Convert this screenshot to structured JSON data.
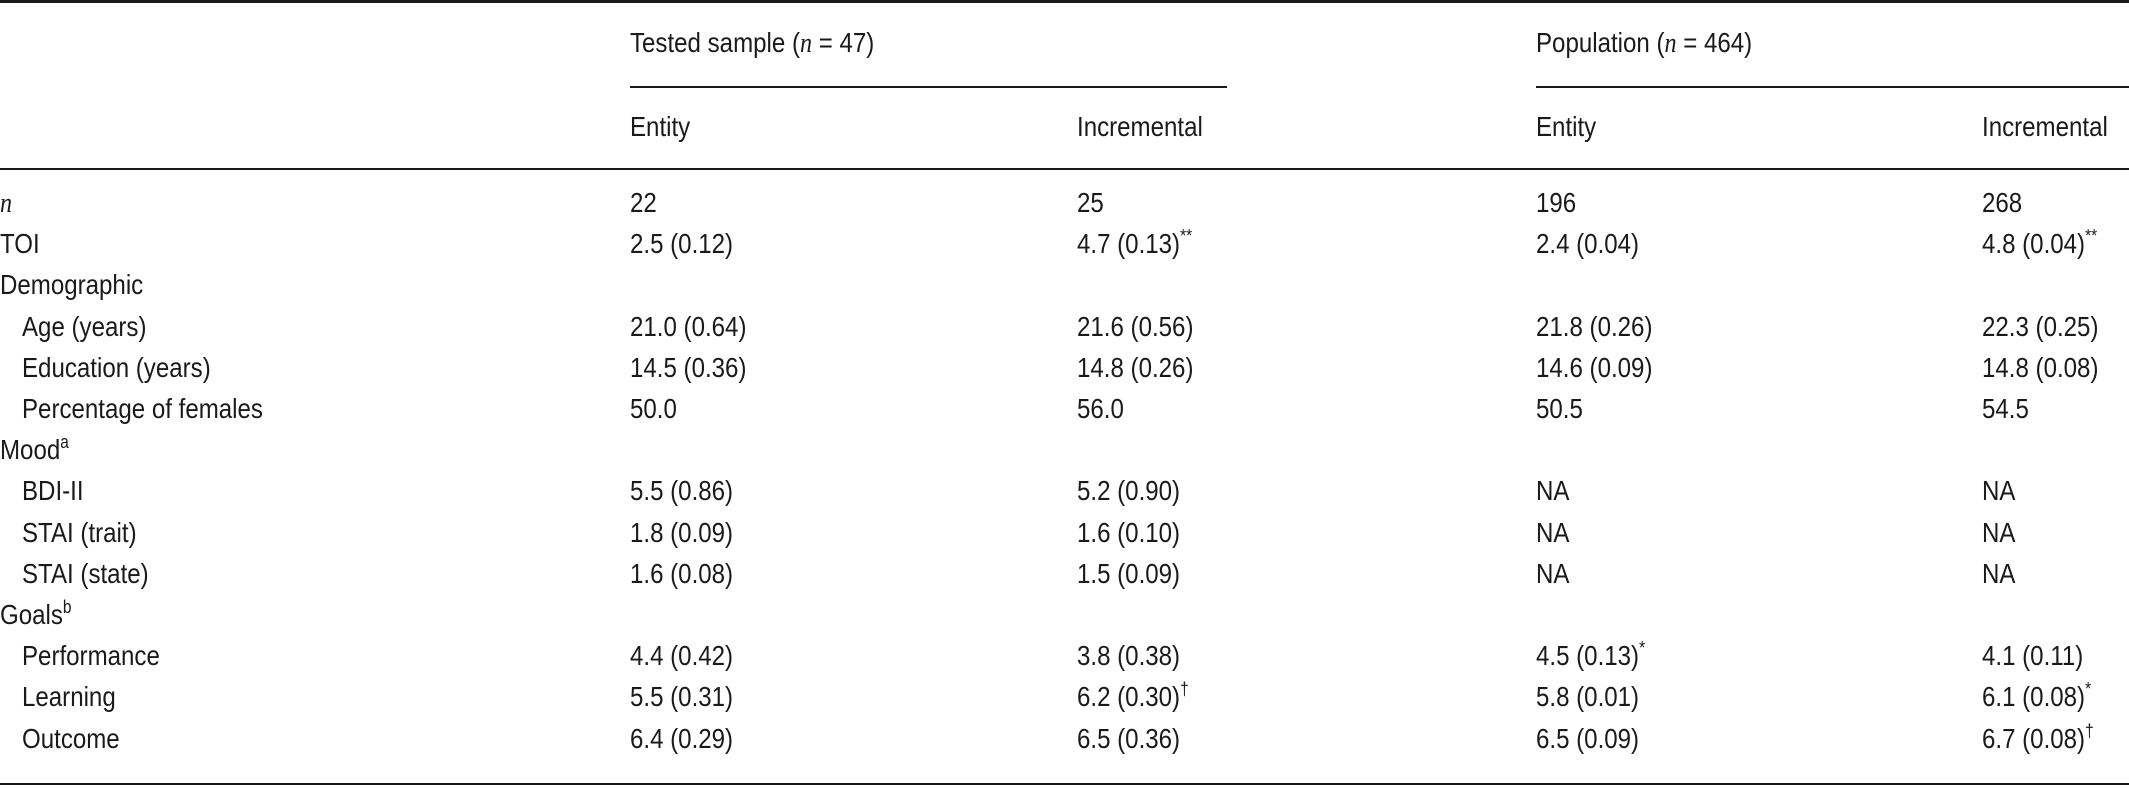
{
  "header": {
    "group_left": {
      "label": "Tested sample (",
      "n_sym": "n",
      "eq": " = 47)"
    },
    "group_right": {
      "label": "Population (",
      "n_sym": "n",
      "eq": " = 464)"
    },
    "sub": [
      "Entity",
      "Incremental",
      "Entity",
      "Incremental"
    ]
  },
  "rows": [
    {
      "label": "n",
      "italic": true,
      "v": [
        "22",
        "25",
        "196",
        "268"
      ]
    },
    {
      "label": "TOI",
      "v": [
        "2.5 (0.12)",
        "4.7 (0.13)",
        "2.4 (0.04)",
        "4.8 (0.04)"
      ],
      "sup": [
        "",
        "**",
        "",
        "**"
      ]
    },
    {
      "label": "Demographic",
      "v": [
        "",
        "",
        "",
        ""
      ]
    },
    {
      "label": "Age (years)",
      "indent": true,
      "v": [
        "21.0 (0.64)",
        "21.6 (0.56)",
        "21.8 (0.26)",
        "22.3 (0.25)"
      ]
    },
    {
      "label": "Education (years)",
      "indent": true,
      "v": [
        "14.5 (0.36)",
        "14.8 (0.26)",
        "14.6 (0.09)",
        "14.8 (0.08)"
      ]
    },
    {
      "label": "Percentage of females",
      "indent": true,
      "v": [
        "50.0",
        "56.0",
        "50.5",
        "54.5"
      ]
    },
    {
      "label": "Mood",
      "label_sup": "a",
      "v": [
        "",
        "",
        "",
        ""
      ]
    },
    {
      "label": "BDI-II",
      "indent": true,
      "v": [
        "5.5 (0.86)",
        "5.2 (0.90)",
        "NA",
        "NA"
      ]
    },
    {
      "label": "STAI (trait)",
      "indent": true,
      "v": [
        "1.8 (0.09)",
        "1.6 (0.10)",
        "NA",
        "NA"
      ]
    },
    {
      "label": "STAI (state)",
      "indent": true,
      "v": [
        "1.6 (0.08)",
        "1.5 (0.09)",
        "NA",
        "NA"
      ]
    },
    {
      "label": "Goals",
      "label_sup": "b",
      "v": [
        "",
        "",
        "",
        ""
      ]
    },
    {
      "label": "Performance",
      "indent": true,
      "v": [
        "4.4 (0.42)",
        "3.8 (0.38)",
        "4.5 (0.13)",
        "4.1 (0.11)"
      ],
      "sup": [
        "",
        "",
        "*",
        ""
      ]
    },
    {
      "label": "Learning",
      "indent": true,
      "v": [
        "5.5 (0.31)",
        "6.2 (0.30)",
        "5.8 (0.01)",
        "6.1 (0.08)"
      ],
      "sup": [
        "",
        "†",
        "",
        "*"
      ]
    },
    {
      "label": "Outcome",
      "indent": true,
      "v": [
        "6.4 (0.29)",
        "6.5 (0.36)",
        "6.5 (0.09)",
        "6.7 (0.08)"
      ],
      "sup": [
        "",
        "",
        "",
        "†"
      ]
    }
  ]
}
